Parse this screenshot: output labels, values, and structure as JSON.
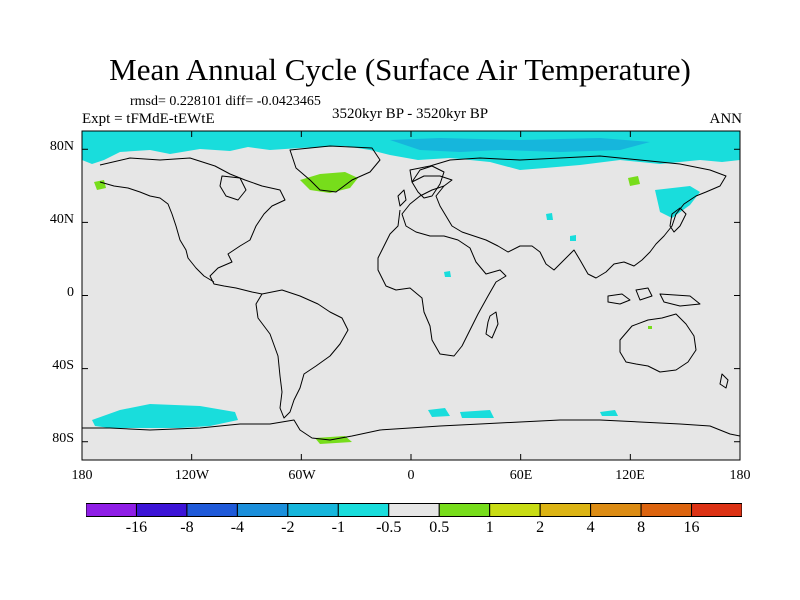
{
  "title": "Mean Annual Cycle (Surface Air Temperature)",
  "stats": "rmsd= 0.228101 diff= -0.0423465",
  "experiment": "Expt = tFMdE-tEWtE",
  "period": "3520kyr BP - 3520kyr BP",
  "season": "ANN",
  "map": {
    "projection": "cylindrical equidistant",
    "lon_range": [
      -180,
      180
    ],
    "lat_range": [
      -90,
      90
    ],
    "ocean_fill": "#e6e6e6",
    "coastline_color": "#000000",
    "y_axis": {
      "labels": [
        "80N",
        "40N",
        "0",
        "40S",
        "80S"
      ],
      "values": [
        80,
        40,
        0,
        -40,
        -80
      ]
    },
    "x_axis": {
      "labels": [
        "180",
        "120W",
        "60W",
        "0",
        "60E",
        "120E",
        "180"
      ],
      "values": [
        -180,
        -120,
        -60,
        0,
        60,
        120,
        180
      ]
    }
  },
  "colorbar": {
    "colors": [
      "#8f1ee6",
      "#3c14d7",
      "#1f5ad9",
      "#1b8fdb",
      "#16b6dc",
      "#19dddc",
      "#e6e6e6",
      "#77dd1b",
      "#c8dc14",
      "#dcb414",
      "#dc8c14",
      "#dc640f",
      "#dc3214"
    ],
    "labels": [
      "-16",
      "-8",
      "-4",
      "-2",
      "-1",
      "-0.5",
      "0.5",
      "1",
      "2",
      "4",
      "8",
      "16"
    ]
  },
  "anomaly_regions": [
    {
      "name": "arctic-ocean-cooling",
      "category": "-1",
      "color": "#19dddc"
    },
    {
      "name": "antarctic-ocean-cooling",
      "category": "-1",
      "color": "#19dddc"
    },
    {
      "name": "greenland-warming",
      "category": "1",
      "color": "#77dd1b"
    },
    {
      "name": "antarctic-coast-warming",
      "category": "1",
      "color": "#77dd1b"
    }
  ]
}
